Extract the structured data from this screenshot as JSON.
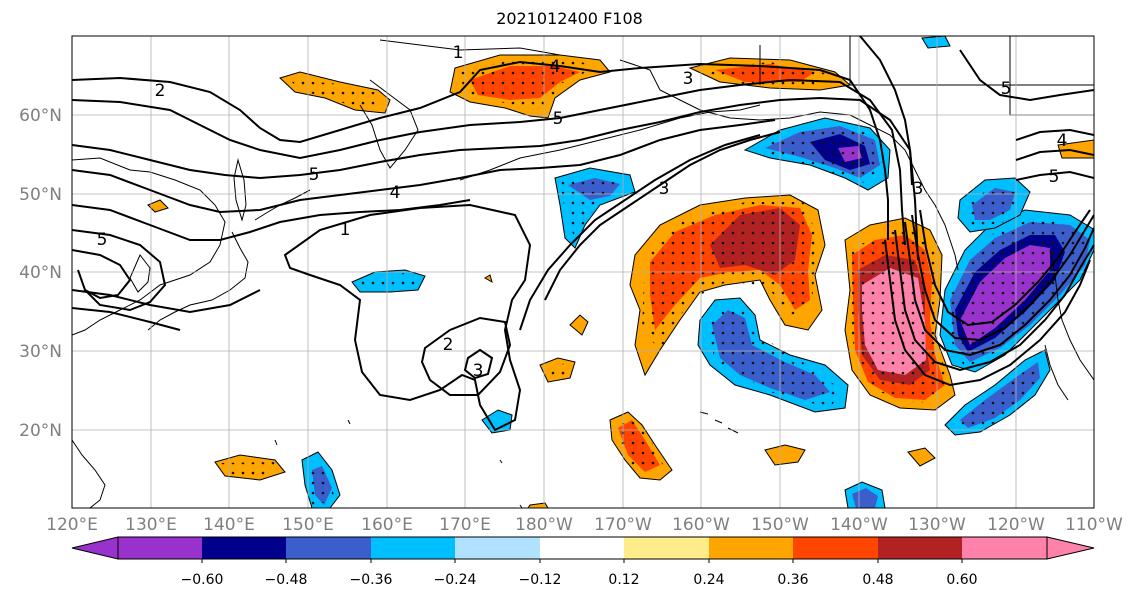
{
  "title": "2021012400 F108",
  "map": {
    "lat_labels": [
      "60°N",
      "50°N",
      "40°N",
      "30°N",
      "20°N"
    ],
    "lon_labels": [
      "120°E",
      "130°E",
      "140°E",
      "150°E",
      "160°E",
      "170°E",
      "180°W",
      "170°W",
      "160°W",
      "150°W",
      "140°W",
      "130°W",
      "120°W",
      "110°W"
    ],
    "contour_labels": [
      "1",
      "2",
      "5",
      "4",
      "3",
      "5",
      "1",
      "2",
      "3",
      "5",
      "4",
      "5",
      "4",
      "5",
      "3",
      "3"
    ],
    "stipple_legend": "dots = significant",
    "colors": {
      "land_outline": "#000000",
      "grid": "#b0b0b0",
      "contour": "#000000"
    }
  },
  "colorbar": {
    "labels": [
      "−0.60",
      "−0.48",
      "−0.36",
      "−0.24",
      "−0.12",
      "0.12",
      "0.24",
      "0.36",
      "0.48",
      "0.60"
    ],
    "colors": [
      "#9932cc",
      "#00008b",
      "#3a5fcd",
      "#00bfff",
      "#b0e2ff",
      "#ffffff",
      "#ffec8b",
      "#ffa500",
      "#ff4500",
      "#b22222",
      "#ff82ab"
    ]
  }
}
